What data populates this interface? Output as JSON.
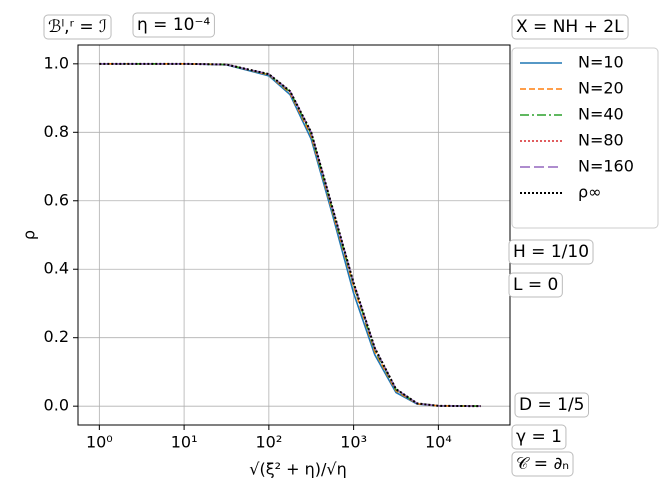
{
  "chart_data": {
    "type": "line",
    "x_label": "√(ξ² + η)/√η",
    "y_label": "ρ",
    "x": [
      1,
      3.16,
      10,
      31.6,
      100,
      178,
      316,
      562,
      1000,
      1778,
      3162,
      5623,
      10000,
      31623
    ],
    "series": [
      {
        "name": "N=10",
        "color": "#1f77b4",
        "values": [
          1,
          1,
          1,
          0.997,
          0.965,
          0.91,
          0.78,
          0.56,
          0.33,
          0.15,
          0.04,
          0.006,
          0.001,
          0
        ]
      },
      {
        "name": "N=20",
        "color": "#ff7f0e",
        "values": [
          1,
          1,
          1,
          0.998,
          0.968,
          0.915,
          0.79,
          0.57,
          0.35,
          0.16,
          0.045,
          0.007,
          0.001,
          0
        ]
      },
      {
        "name": "N=40",
        "color": "#2ca02c",
        "values": [
          1,
          1,
          1,
          0.998,
          0.969,
          0.918,
          0.795,
          0.575,
          0.355,
          0.165,
          0.048,
          0.008,
          0.001,
          0
        ]
      },
      {
        "name": "N=80",
        "color": "#d62728",
        "values": [
          1,
          1,
          1,
          0.998,
          0.97,
          0.92,
          0.8,
          0.58,
          0.36,
          0.17,
          0.05,
          0.008,
          0.001,
          0
        ]
      },
      {
        "name": "N=160",
        "color": "#9467bd",
        "values": [
          1,
          1,
          1,
          0.998,
          0.97,
          0.92,
          0.8,
          0.58,
          0.36,
          0.17,
          0.05,
          0.008,
          0.001,
          0
        ]
      },
      {
        "name": "ρ∞",
        "color": "#000000",
        "values": [
          1,
          1,
          1,
          0.998,
          0.97,
          0.92,
          0.8,
          0.58,
          0.36,
          0.17,
          0.05,
          0.008,
          0.001,
          0
        ]
      }
    ],
    "xscale": "log",
    "xlim": [
      0.56,
      70000
    ],
    "ylim": [
      -0.055,
      1.055
    ],
    "xticks": [
      {
        "value": 1,
        "label": "10⁰"
      },
      {
        "value": 10,
        "label": "10¹"
      },
      {
        "value": 100,
        "label": "10²"
      },
      {
        "value": 1000,
        "label": "10³"
      },
      {
        "value": 10000,
        "label": "10⁴"
      }
    ],
    "yticks": [
      {
        "value": 0,
        "label": "0.0"
      },
      {
        "value": 0.2,
        "label": "0.2"
      },
      {
        "value": 0.4,
        "label": "0.4"
      },
      {
        "value": 0.6,
        "label": "0.6"
      },
      {
        "value": 0.8,
        "label": "0.8"
      },
      {
        "value": 1,
        "label": "1.0"
      }
    ],
    "grid": true,
    "legend_position": "outside-upper-right",
    "annotations": [
      "ℬˡ,ʳ = ℐ",
      "η = 10⁻⁴",
      "X = NH + 2L",
      "H = 1/10",
      "L = 0",
      "D = 1/5",
      "γ = 1",
      "𝒞 = ∂ₙ"
    ]
  }
}
